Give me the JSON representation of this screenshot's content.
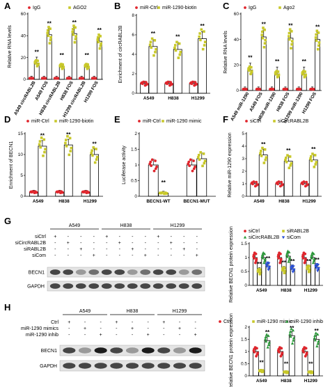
{
  "colors": {
    "red": "#e0262d",
    "yellow": "#c8c82a",
    "blue": "#2a4fd6",
    "green": "#2b9a3a",
    "blot_bg": "#e4e4e4"
  },
  "chart_data": [
    {
      "panel": "A",
      "type": "bar",
      "ylabel": "Relative RNA levels",
      "ylim": [
        0,
        60
      ],
      "yticks": [
        0,
        20,
        40,
        60
      ],
      "categories": [
        "A549 circRABL2B",
        "A549 FOS",
        "H838 circRABL2B",
        "H838 FOS",
        "H1299 circRABL2B",
        "H1299 FOS"
      ],
      "series": [
        {
          "name": "IgG",
          "color": "red",
          "values": [
            1,
            1,
            1,
            1,
            1,
            1
          ]
        },
        {
          "name": "AGO2",
          "color": "yellow",
          "values": [
            15,
            41,
            12,
            42,
            12,
            35
          ]
        }
      ],
      "significance": [
        "**",
        "**",
        "**",
        "**",
        "**",
        "**"
      ]
    },
    {
      "panel": "B",
      "type": "bar",
      "ylabel": "Enrichment of circRABL2B",
      "ylim": [
        0,
        8
      ],
      "yticks": [
        0,
        2,
        4,
        6,
        8
      ],
      "categories": [
        "A549",
        "H838",
        "H1299"
      ],
      "series": [
        {
          "name": "miR-Ctrl",
          "color": "red",
          "values": [
            1,
            1,
            1
          ]
        },
        {
          "name": "miR-1290-biotin",
          "color": "yellow",
          "values": [
            4.8,
            4.5,
            5.6
          ]
        }
      ],
      "significance": [
        "**",
        "**",
        "**"
      ]
    },
    {
      "panel": "C",
      "type": "bar",
      "ylabel": "Relative RNA levels",
      "ylim": [
        0,
        60
      ],
      "yticks": [
        0,
        20,
        40,
        60
      ],
      "categories": [
        "A549 miR-1290",
        "A549 FOS",
        "H838 miR-1290",
        "H838 FOS",
        "H1299 miR-1290",
        "H1299 FOS"
      ],
      "series": [
        {
          "name": "IgG",
          "color": "red",
          "values": [
            1,
            1,
            1,
            1,
            1,
            1
          ]
        },
        {
          "name": "Ago2",
          "color": "yellow",
          "values": [
            16,
            42,
            13,
            41,
            13,
            40
          ]
        }
      ],
      "significance": [
        "**",
        "**",
        "**",
        "**",
        "**",
        "**"
      ]
    },
    {
      "panel": "D",
      "type": "bar",
      "ylabel": "Enrichment of BECN1",
      "ylim": [
        0,
        15
      ],
      "yticks": [
        0,
        5,
        10,
        15
      ],
      "categories": [
        "A549",
        "H838",
        "H1299"
      ],
      "series": [
        {
          "name": "miR-Ctrl",
          "color": "red",
          "values": [
            1,
            1,
            1
          ]
        },
        {
          "name": "miR-1290-biotin",
          "color": "yellow",
          "values": [
            12,
            12.3,
            10
          ]
        }
      ],
      "significance": [
        "**",
        "**",
        "**"
      ]
    },
    {
      "panel": "E",
      "type": "bar",
      "ylabel": "Luciferase activity",
      "ylim": [
        0,
        2.0
      ],
      "yticks": [
        0.0,
        0.5,
        1.0,
        1.5,
        2.0
      ],
      "categories": [
        "BECN1-WT",
        "BECN1-MUT"
      ],
      "series": [
        {
          "name": "miR-Ctrl",
          "color": "red",
          "values": [
            1.0,
            1.0
          ]
        },
        {
          "name": "miR-1290 mimic",
          "color": "yellow",
          "values": [
            0.1,
            1.2
          ]
        }
      ],
      "significance": [
        "**",
        ""
      ]
    },
    {
      "panel": "F",
      "type": "bar",
      "ylabel": "Relative miR-1290 expression",
      "ylim": [
        0,
        5
      ],
      "yticks": [
        0,
        1,
        2,
        3,
        4,
        5
      ],
      "categories": [
        "A549",
        "H838",
        "H1299"
      ],
      "series": [
        {
          "name": "siCtrl",
          "color": "red",
          "values": [
            1,
            1,
            1
          ]
        },
        {
          "name": "siCircRABL2B",
          "color": "yellow",
          "values": [
            3.3,
            2.8,
            2.9
          ]
        }
      ],
      "significance": [
        "**",
        "**",
        "**"
      ]
    },
    {
      "panel": "G",
      "type": "bar",
      "ylabel": "Relative BECN1 protein expression",
      "ylim": [
        0,
        1.5
      ],
      "yticks": [
        0.0,
        0.5,
        1.0,
        1.5
      ],
      "categories": [
        "A549",
        "H838",
        "H1299"
      ],
      "series": [
        {
          "name": "siCtrl",
          "color": "red",
          "values": [
            1.0,
            1.0,
            1.0
          ]
        },
        {
          "name": "siRABL2B",
          "color": "yellow",
          "values": [
            0.5,
            0.55,
            0.6
          ]
        },
        {
          "name": "siCircRABL2B",
          "color": "green",
          "values": [
            1.0,
            1.05,
            1.0
          ]
        },
        {
          "name": "siCom",
          "color": "blue",
          "values": [
            0.7,
            0.6,
            0.65
          ]
        }
      ],
      "significance": [
        "**",
        "**",
        "**"
      ]
    },
    {
      "panel": "H",
      "type": "bar",
      "ylabel": "Relative BECN1 protein expression",
      "ylim": [
        0,
        2.0
      ],
      "yticks": [
        0.0,
        0.5,
        1.0,
        1.5,
        2.0
      ],
      "categories": [
        "A549",
        "H838",
        "H1299"
      ],
      "series": [
        {
          "name": "Ctrl",
          "color": "red",
          "values": [
            1.0,
            1.0,
            1.0
          ]
        },
        {
          "name": "miR-1290 mimic",
          "color": "yellow",
          "values": [
            0.2,
            0.15,
            0.15
          ]
        },
        {
          "name": "miR-1290 inhib",
          "color": "green",
          "values": [
            1.45,
            1.65,
            1.5
          ]
        }
      ],
      "significance": [
        "**",
        "**",
        "**"
      ]
    }
  ],
  "blots": [
    {
      "panel": "G",
      "cell_lines": [
        "A549",
        "H838",
        "H1299"
      ],
      "conditions": [
        "siCtrl",
        "siCircRABL2B",
        "siRABL2B",
        "siCom"
      ],
      "markers": [
        [
          "+",
          "-",
          "-",
          "-",
          "+",
          "-",
          "-",
          "-",
          "+",
          "-",
          "-",
          "-"
        ],
        [
          "-",
          "+",
          "-",
          "-",
          "-",
          "+",
          "-",
          "-",
          "-",
          "+",
          "-",
          "-"
        ],
        [
          "-",
          "-",
          "+",
          "-",
          "-",
          "-",
          "+",
          "-",
          "-",
          "-",
          "+",
          "-"
        ],
        [
          "-",
          "-",
          "-",
          "+",
          "-",
          "-",
          "-",
          "+",
          "-",
          "-",
          "-",
          "+"
        ]
      ],
      "proteins": [
        "BECN1",
        "GAPDH"
      ]
    },
    {
      "panel": "H",
      "cell_lines": [
        "A549",
        "H838",
        "H1299"
      ],
      "conditions": [
        "Ctrl",
        "miR-1290 mimics",
        "miR-1290 inhib"
      ],
      "markers": [
        [
          "+",
          "-",
          "-",
          "+",
          "-",
          "-",
          "+",
          "-",
          "-"
        ],
        [
          "-",
          "+",
          "-",
          "-",
          "+",
          "-",
          "-",
          "+",
          "-"
        ],
        [
          "-",
          "-",
          "+",
          "-",
          "-",
          "+",
          "-",
          "-",
          "+"
        ]
      ],
      "proteins": [
        "BECN1",
        "GAPDH"
      ]
    }
  ]
}
